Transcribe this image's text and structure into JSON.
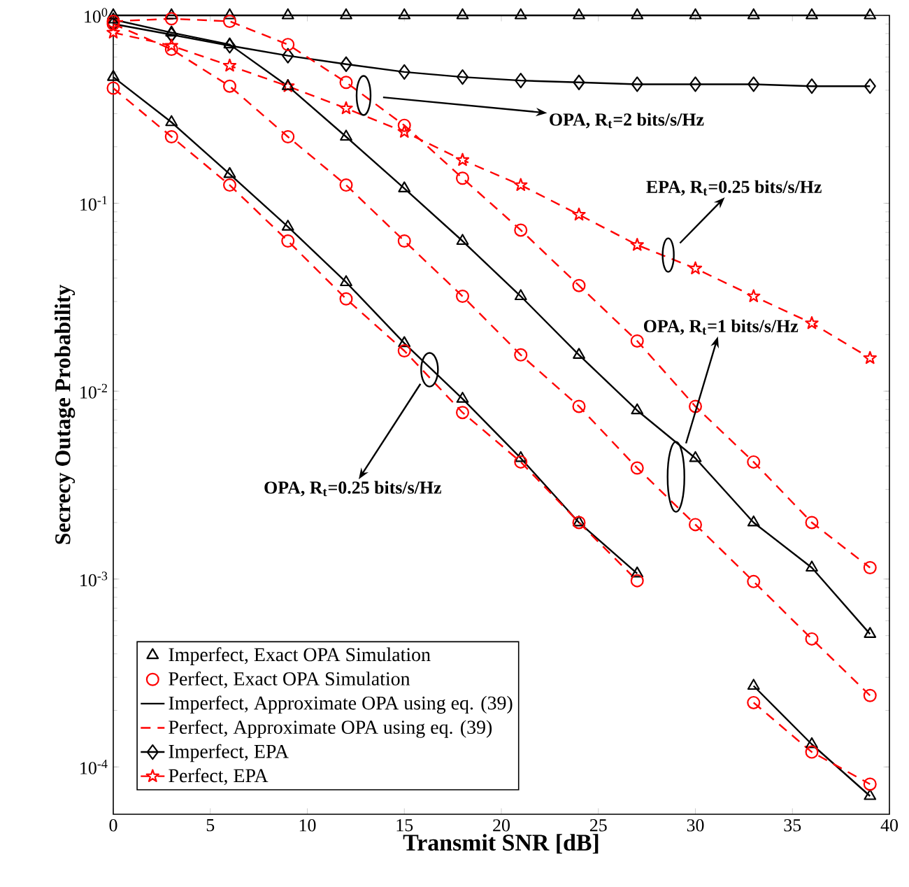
{
  "chart_data": {
    "type": "line",
    "xlabel": "Transmit SNR [dB]",
    "ylabel": "Secrecy Outage Probability",
    "log": "y",
    "legend": "bottom left",
    "x": [
      0,
      3,
      6,
      9,
      12,
      15,
      18,
      21,
      24,
      27,
      30,
      33,
      36,
      39
    ],
    "xlim": [
      0,
      40
    ],
    "xticks": [
      0,
      5,
      10,
      15,
      20,
      25,
      30,
      35,
      40
    ],
    "ylim": [
      5.6e-05,
      1
    ],
    "yticks": [
      {
        "value": 0.0001,
        "label": "10$^{-4}$"
      },
      {
        "value": 0.001,
        "label": "10$^{-3}$"
      },
      {
        "value": 0.01,
        "label": "10$^{-2}$"
      },
      {
        "value": 0.1,
        "label": "10$^{-1}$"
      },
      {
        "value": 1,
        "label": "10$^{0}$"
      }
    ],
    "series": [
      {
        "name": "Imperfect, Exact OPA Simulation",
        "type": "scatter",
        "marker": "triangle",
        "color": "#000000",
        "values": [
          0.47,
          0.27,
          0.143,
          0.075,
          0.038,
          0.018,
          0.0091,
          0.0044,
          0.002,
          0.00107,
          null,
          0.00027,
          0.000132,
          7e-05
        ]
      },
      {
        "name": "Perfect, Exact OPA Simulation",
        "type": "scatter",
        "marker": "circle",
        "color": "#ff0000",
        "values": [
          0.41,
          0.226,
          0.125,
          0.063,
          0.031,
          0.0164,
          0.0077,
          0.0042,
          0.002,
          0.00098,
          null,
          0.00022,
          0.00012,
          8.1e-05
        ]
      },
      {
        "name": "Imperfect, Approximate OPA using eq. (39)",
        "line_style": "solid",
        "marker": "none",
        "color": "#000000",
        "values": [
          0.47,
          0.27,
          0.143,
          0.075,
          0.038,
          0.018,
          0.0091,
          0.0044,
          0.002,
          0.00107,
          null,
          0.00027,
          0.000132,
          7e-05
        ]
      },
      {
        "name": "Perfect, Approximate OPA using eq. (39)",
        "line_style": "dashed",
        "marker": "none",
        "color": "#ff0000",
        "values": [
          0.41,
          0.226,
          0.125,
          0.063,
          0.031,
          0.0164,
          0.0077,
          0.0042,
          0.002,
          0.00098,
          null,
          0.00022,
          0.00012,
          8.1e-05
        ]
      },
      {
        "name": "Imperfect, EPA",
        "line_style": "solid",
        "marker": "diamond",
        "color": "#000000",
        "values": [
          0.9,
          0.79,
          0.69,
          0.61,
          0.55,
          0.5,
          0.47,
          0.45,
          0.44,
          0.43,
          0.43,
          0.43,
          0.42,
          0.42
        ]
      },
      {
        "name": "Perfect, EPA",
        "line_style": "dashed",
        "marker": "star",
        "color": "#ff0000",
        "values": [
          0.81,
          0.69,
          0.54,
          0.42,
          0.32,
          0.24,
          0.17,
          0.125,
          0.087,
          0.06,
          0.045,
          0.032,
          0.023,
          0.015
        ]
      },
      {
        "type": "scatter",
        "marker": "triangle",
        "color": "#000000",
        "values": [
          0.95,
          0.81,
          0.7,
          0.42,
          0.226,
          0.12,
          0.063,
          0.032,
          0.0156,
          0.0079,
          0.0044,
          0.002,
          0.00115,
          0.00051
        ]
      },
      {
        "line_style": "solid",
        "marker": "none",
        "color": "#000000",
        "values": [
          0.95,
          0.81,
          0.7,
          0.42,
          0.226,
          0.12,
          0.063,
          0.032,
          0.0156,
          0.0079,
          0.0044,
          0.002,
          0.00115,
          0.00051
        ]
      },
      {
        "type": "scatter",
        "marker": "circle",
        "color": "#ff0000",
        "values": [
          0.9,
          0.66,
          0.42,
          0.226,
          0.125,
          0.063,
          0.032,
          0.0156,
          0.0083,
          0.0039,
          0.00195,
          0.00097,
          0.00048,
          0.00024
        ]
      },
      {
        "line_style": "dashed",
        "marker": "none",
        "color": "#ff0000",
        "values": [
          0.9,
          0.66,
          0.42,
          0.226,
          0.125,
          0.063,
          0.032,
          0.0156,
          0.0083,
          0.0039,
          0.00195,
          0.00097,
          0.00048,
          0.00024
        ]
      },
      {
        "type": "scatter",
        "marker": "triangle",
        "color": "#000000",
        "values": [
          1,
          1,
          1,
          1,
          1,
          1,
          1,
          1,
          1,
          1,
          1,
          1,
          1,
          1
        ]
      },
      {
        "line_style": "solid",
        "marker": "none",
        "color": "#000000",
        "values": [
          1,
          1,
          1,
          1,
          1,
          1,
          1,
          1,
          1,
          1,
          1,
          1,
          1,
          1
        ]
      },
      {
        "type": "scatter",
        "marker": "circle",
        "color": "#ff0000",
        "values": [
          0.93,
          0.96,
          0.93,
          0.7,
          0.44,
          0.26,
          0.136,
          0.072,
          0.0365,
          0.0185,
          0.0083,
          0.0042,
          0.002,
          0.00115
        ]
      },
      {
        "line_style": "dashed",
        "marker": "none",
        "color": "#ff0000",
        "values": [
          0.93,
          0.96,
          0.93,
          0.7,
          0.44,
          0.26,
          0.136,
          0.072,
          0.0365,
          0.0185,
          0.0083,
          0.0042,
          0.002,
          0.00115
        ]
      }
    ],
    "annotations": [
      "OPA, R$_{t}$=2 bits/s/Hz",
      "EPA, R$_{t}$=0.25 bits/s/Hz",
      "OPA, R$_{t}$=1 bits/s/Hz",
      "OPA, R$_{t}$=0.25 bits/s/Hz"
    ]
  }
}
